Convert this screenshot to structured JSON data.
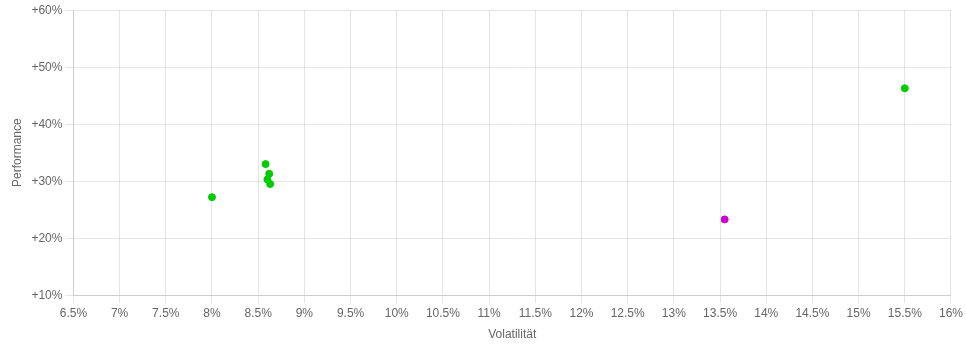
{
  "chart_data": {
    "type": "scatter",
    "xlabel": "Volatilität",
    "ylabel": "Performance",
    "xlim": [
      0.065,
      0.16
    ],
    "ylim": [
      0.1,
      0.6
    ],
    "xticks": [
      {
        "value": 0.065,
        "label": "6.5%"
      },
      {
        "value": 0.07,
        "label": "7%"
      },
      {
        "value": 0.075,
        "label": "7.5%"
      },
      {
        "value": 0.08,
        "label": "8%"
      },
      {
        "value": 0.085,
        "label": "8.5%"
      },
      {
        "value": 0.09,
        "label": "9%"
      },
      {
        "value": 0.095,
        "label": "9.5%"
      },
      {
        "value": 0.1,
        "label": "10%"
      },
      {
        "value": 0.105,
        "label": "10.5%"
      },
      {
        "value": 0.11,
        "label": "11%"
      },
      {
        "value": 0.115,
        "label": "11.5%"
      },
      {
        "value": 0.12,
        "label": "12%"
      },
      {
        "value": 0.125,
        "label": "12.5%"
      },
      {
        "value": 0.13,
        "label": "13%"
      },
      {
        "value": 0.135,
        "label": "13.5%"
      },
      {
        "value": 0.14,
        "label": "14%"
      },
      {
        "value": 0.145,
        "label": "14.5%"
      },
      {
        "value": 0.15,
        "label": "15%"
      },
      {
        "value": 0.155,
        "label": "15.5%"
      },
      {
        "value": 0.16,
        "label": "16%"
      }
    ],
    "yticks": [
      {
        "value": 0.1,
        "label": "+10%"
      },
      {
        "value": 0.2,
        "label": "+20%"
      },
      {
        "value": 0.3,
        "label": "+30%"
      },
      {
        "value": 0.4,
        "label": "+40%"
      },
      {
        "value": 0.5,
        "label": "+50%"
      },
      {
        "value": 0.6,
        "label": "+60%"
      }
    ],
    "grid": true,
    "series": [
      {
        "color": "#00cc00",
        "x": [
          0.08,
          0.0858,
          0.0862,
          0.086,
          0.0863,
          0.155
        ],
        "values": [
          0.272,
          0.33,
          0.313,
          0.303,
          0.295,
          0.463
        ]
      },
      {
        "color": "#cc00cc",
        "x": [
          0.1355
        ],
        "values": [
          0.233
        ]
      }
    ]
  }
}
